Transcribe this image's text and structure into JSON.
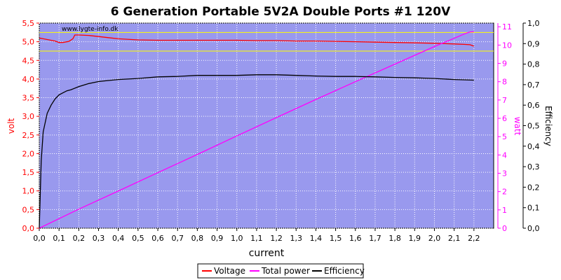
{
  "chart_data": {
    "type": "line",
    "title": "6 Generation Portable 5V2A Double Ports #1 120V",
    "watermark": "www.lygte-info.dk",
    "xlabel": "current",
    "xlim": [
      0,
      2.3
    ],
    "x_ticks": [
      "0,0",
      "0,1",
      "0,2",
      "0,3",
      "0,4",
      "0,5",
      "0,6",
      "0,7",
      "0,8",
      "0,9",
      "1,0",
      "1,1",
      "1,2",
      "1,3",
      "1,4",
      "1,5",
      "1,6",
      "1,7",
      "1,8",
      "1,9",
      "2,0",
      "2,1",
      "2,2"
    ],
    "y_left": {
      "label": "volt",
      "color": "#ff0000",
      "lim": [
        0,
        5.5
      ],
      "ticks": [
        "0,0",
        "0,5",
        "1,0",
        "1,5",
        "2,0",
        "2,5",
        "3,0",
        "3,5",
        "4,0",
        "4,5",
        "5,0",
        "5,5"
      ]
    },
    "y_right1": {
      "label": "watt",
      "color": "#ff00ff",
      "lim": [
        0,
        11.2
      ],
      "ticks": [
        "0",
        "1",
        "2",
        "3",
        "4",
        "5",
        "6",
        "7",
        "8",
        "9",
        "10",
        "11"
      ]
    },
    "y_right2": {
      "label": "Efficiency",
      "color": "#000000",
      "lim": [
        0,
        1.0
      ],
      "ticks": [
        "0,0",
        "0,1",
        "0,2",
        "0,3",
        "0,4",
        "0,5",
        "0,6",
        "0,7",
        "0,8",
        "0,9",
        "1,0"
      ]
    },
    "reference_lines": {
      "color": "#ffff00",
      "values": [
        5.25,
        4.75
      ],
      "axis": "volt"
    },
    "grid": true,
    "legend": "bottom",
    "series": [
      {
        "name": "Voltage",
        "axis": "volt",
        "color": "#ff0000",
        "x": [
          0.0,
          0.02,
          0.05,
          0.08,
          0.1,
          0.12,
          0.15,
          0.17,
          0.18,
          0.2,
          0.25,
          0.3,
          0.35,
          0.4,
          0.5,
          0.6,
          0.7,
          0.8,
          0.9,
          1.0,
          1.1,
          1.2,
          1.3,
          1.4,
          1.5,
          1.6,
          1.7,
          1.8,
          1.9,
          2.0,
          2.1,
          2.15,
          2.18,
          2.2
        ],
        "y": [
          5.1,
          5.08,
          5.05,
          5.02,
          4.98,
          4.98,
          5.01,
          5.08,
          5.18,
          5.18,
          5.17,
          5.14,
          5.11,
          5.08,
          5.05,
          5.04,
          5.04,
          5.04,
          5.04,
          5.04,
          5.03,
          5.03,
          5.02,
          5.02,
          5.01,
          5.0,
          4.99,
          4.98,
          4.97,
          4.96,
          4.94,
          4.93,
          4.92,
          4.88
        ]
      },
      {
        "name": "Total power",
        "axis": "watt",
        "color": "#ff00ff",
        "x": [
          0.0,
          0.2,
          0.4,
          0.6,
          0.8,
          1.0,
          1.2,
          1.4,
          1.6,
          1.8,
          2.0,
          2.1,
          2.15,
          2.18,
          2.2
        ],
        "y": [
          0.0,
          1.04,
          2.03,
          3.03,
          4.03,
          5.04,
          6.04,
          7.03,
          8.0,
          8.96,
          9.92,
          10.37,
          10.6,
          10.72,
          10.73
        ]
      },
      {
        "name": "Efficiency",
        "axis": "efficiency",
        "color": "#000000",
        "x": [
          0.0,
          0.01,
          0.02,
          0.04,
          0.06,
          0.08,
          0.1,
          0.12,
          0.14,
          0.16,
          0.2,
          0.25,
          0.3,
          0.35,
          0.4,
          0.5,
          0.6,
          0.7,
          0.8,
          0.9,
          1.0,
          1.1,
          1.2,
          1.3,
          1.4,
          1.5,
          1.6,
          1.7,
          1.8,
          1.9,
          2.0,
          2.1,
          2.2
        ],
        "y": [
          0.0,
          0.33,
          0.47,
          0.56,
          0.6,
          0.63,
          0.65,
          0.66,
          0.67,
          0.675,
          0.69,
          0.705,
          0.715,
          0.72,
          0.725,
          0.73,
          0.738,
          0.74,
          0.745,
          0.745,
          0.745,
          0.748,
          0.748,
          0.745,
          0.742,
          0.74,
          0.74,
          0.738,
          0.735,
          0.733,
          0.73,
          0.725,
          0.722
        ]
      }
    ]
  }
}
